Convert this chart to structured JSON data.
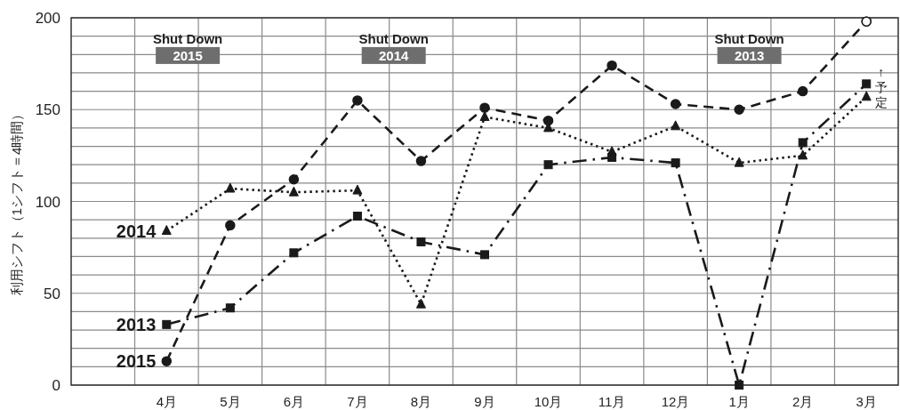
{
  "chart_data": {
    "type": "line",
    "ylabel": "利用シフト（1シフト＝4時間）",
    "categories": [
      null,
      "4月",
      "5月",
      "6月",
      "7月",
      "8月",
      "9月",
      "10月",
      "11月",
      "12月",
      "1月",
      "2月",
      "3月"
    ],
    "ylim": [
      0,
      200
    ],
    "yticks": [
      0,
      {
        "value": 10,
        "label": null
      },
      {
        "value": 20,
        "label": null
      },
      {
        "value": 30,
        "label": null
      },
      {
        "value": 40,
        "label": null
      },
      50,
      {
        "value": 60,
        "label": null
      },
      {
        "value": 70,
        "label": null
      },
      {
        "value": 80,
        "label": null
      },
      {
        "value": 90,
        "label": null
      },
      100,
      {
        "value": 110,
        "label": null
      },
      {
        "value": 120,
        "label": null
      },
      {
        "value": 130,
        "label": null
      },
      {
        "value": 140,
        "label": null
      },
      150,
      {
        "value": 160,
        "label": null
      },
      {
        "value": 170,
        "label": null
      },
      {
        "value": 180,
        "label": null
      },
      {
        "value": 190,
        "label": null
      },
      200
    ],
    "grid": true,
    "series": [
      {
        "name": "2014",
        "color": "#1a1a1a",
        "marker": "triangle",
        "line_style": "dotted",
        "values": [
          null,
          84,
          107,
          105,
          106,
          44,
          146,
          140,
          127,
          141,
          121,
          125,
          157
        ]
      },
      {
        "name": "2013",
        "color": "#1a1a1a",
        "marker": "square",
        "line_style": "dashdot",
        "values": [
          null,
          33,
          42,
          72,
          92,
          78,
          71,
          120,
          124,
          121,
          0,
          132,
          164
        ]
      },
      {
        "name": "2015",
        "color": "#1a1a1a",
        "marker": "circle",
        "line_style": "dashed",
        "values": [
          null,
          13,
          87,
          112,
          155,
          122,
          151,
          144,
          174,
          153,
          150,
          160,
          198
        ]
      },
      {
        "type": "scatter",
        "color": "#ffffff",
        "marker": "circle",
        "values": [
          null,
          null,
          null,
          null,
          null,
          null,
          null,
          null,
          null,
          null,
          null,
          null,
          198
        ]
      }
    ],
    "annotations": [
      "Shut Down\n2015",
      "Shut Down\n2014",
      "Shut Down\n2013",
      "↑予定"
    ]
  }
}
